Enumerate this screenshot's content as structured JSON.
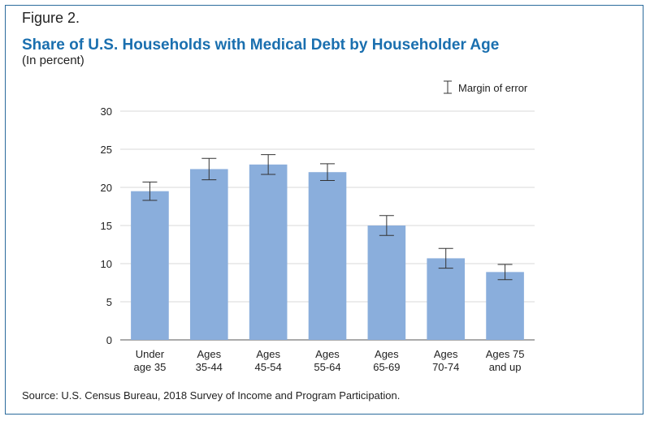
{
  "figure_label": "Figure 2.",
  "source": "Source: U.S. Census Bureau, 2018 Survey of Income and Program Participation.",
  "colors": {
    "bar": "#8aaedc",
    "title": "#1a6faf",
    "frame": "#2b6b9c",
    "grid": "#d9d9d9",
    "error": "#333333"
  },
  "chart_data": {
    "type": "bar",
    "title": "Share of U.S. Households with Medical Debt by Householder Age",
    "subtitle": "(In percent)",
    "legend": {
      "label": "Margin of error",
      "position": "top-right"
    },
    "categories": [
      [
        "Under",
        "age 35"
      ],
      [
        "Ages",
        "35-44"
      ],
      [
        "Ages",
        "45-54"
      ],
      [
        "Ages",
        "55-64"
      ],
      [
        "Ages",
        "65-69"
      ],
      [
        "Ages",
        "70-74"
      ],
      [
        "Ages 75",
        "and up"
      ]
    ],
    "values": [
      19.5,
      22.4,
      23.0,
      22.0,
      15.0,
      10.7,
      8.9
    ],
    "errors": [
      1.2,
      1.4,
      1.3,
      1.1,
      1.3,
      1.3,
      1.0
    ],
    "ylim": [
      0,
      30
    ],
    "yticks": [
      0,
      5,
      10,
      15,
      20,
      25,
      30
    ],
    "grid": true
  }
}
